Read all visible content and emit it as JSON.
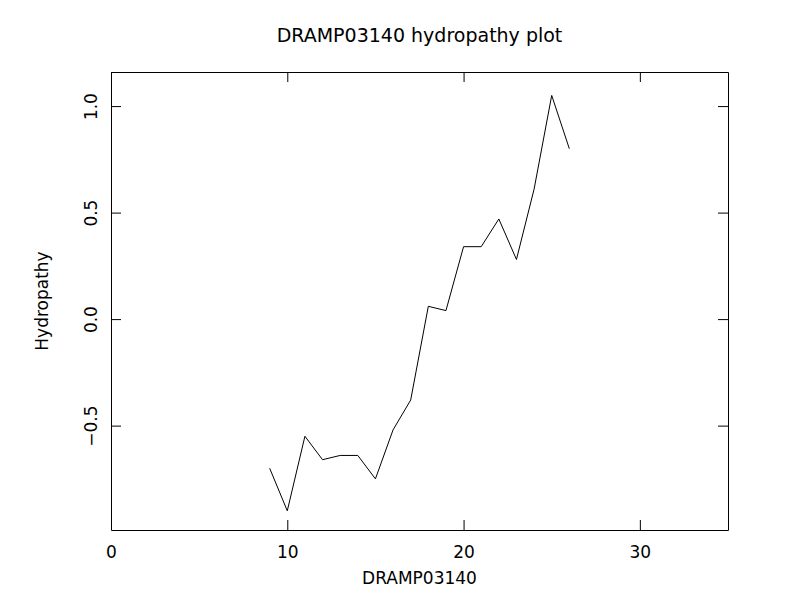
{
  "chart_data": {
    "type": "line",
    "title": "DRAMP03140 hydropathy plot",
    "x_label": "DRAMP03140",
    "y_label": "Hydropathy",
    "x": [
      9,
      10,
      11,
      12,
      13,
      14,
      15,
      16,
      17,
      18,
      19,
      20,
      21,
      22,
      23,
      24,
      25,
      26
    ],
    "values": [
      -0.7,
      -0.9,
      -0.55,
      -0.66,
      -0.64,
      -0.64,
      -0.75,
      -0.52,
      -0.38,
      0.06,
      0.04,
      0.34,
      0.34,
      0.47,
      0.28,
      0.61,
      1.05,
      0.8
    ],
    "color": "#000000",
    "xlim": [
      0,
      35
    ],
    "xticks": [
      0,
      10,
      20,
      30
    ],
    "ylim": [
      -0.99,
      1.16
    ],
    "yticks": [
      {
        "value": -0.5,
        "label": "−0.5"
      },
      {
        "value": 0,
        "label": "0.0"
      },
      {
        "value": 0.5,
        "label": "0.5"
      },
      {
        "value": 1,
        "label": "1.0"
      }
    ],
    "grid": false
  }
}
